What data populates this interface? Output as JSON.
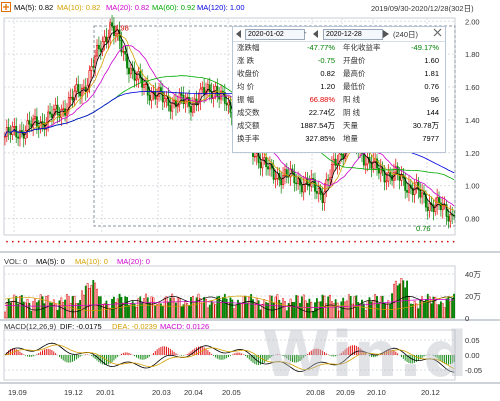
{
  "header": {
    "ma5": "MA(5): 0.82",
    "ma10": "MA(10): 0.82",
    "ma20": "MA(20): 0.82",
    "ma60": "MA(60): 0.92",
    "ma120": "MA(120): 1.00",
    "date_range": "2019/09/30-2020/12/28(302日)"
  },
  "info_panel": {
    "start_date": "2020-01-02",
    "end_date": "2020-12-28",
    "days": "(240日)",
    "rows": [
      {
        "l1": "涨跌幅",
        "v1": "-47.77%",
        "l2": "年化收益率",
        "v2": "-49.17%",
        "c1": "#008000",
        "c2": "#008000"
      },
      {
        "l1": "涨 跌",
        "v1": "-0.75",
        "l2": "开盘价",
        "v2": "1.60",
        "c1": "#008000",
        "c2": "#000000"
      },
      {
        "l1": "收盘价",
        "v1": "0.82",
        "l2": "最高价",
        "v2": "1.81",
        "c1": "#000000",
        "c2": "#000000"
      },
      {
        "l1": "均 价",
        "v1": "1.20",
        "l2": "最低价",
        "v2": "0.76",
        "c1": "#000000",
        "c2": "#000000"
      },
      {
        "l1": "振 幅",
        "v1": "66.88%",
        "l2": "阳 线",
        "v2": "96",
        "c1": "#e00000",
        "c2": "#000000"
      },
      {
        "l1": "成交数",
        "v1": "22.74亿",
        "l2": "阴 线",
        "v2": "144",
        "c1": "#000000",
        "c2": "#000000"
      },
      {
        "l1": "成交额",
        "v1": "1887.54万",
        "l2": "天量",
        "v2": "30.78万",
        "c1": "#000000",
        "c2": "#000000"
      },
      {
        "l1": "换手率",
        "v1": "327.85%",
        "l2": "地量",
        "v2": "7977",
        "c1": "#000000",
        "c2": "#000000"
      }
    ]
  },
  "volume_header": {
    "label": "VOL: 0",
    "ma5": "MA(5): 0",
    "ma10": "MA(10): 0",
    "ma20": "MA(20): 0"
  },
  "macd_header": {
    "label": "MACD(12,26,9)",
    "dif": "DIF: -0.0175",
    "dea": "DEA: -0.0239",
    "macd": "MACD: 0.0126"
  },
  "colors": {
    "up": "#e00000",
    "down": "#008000",
    "ma5": "#000000",
    "ma10": "#d4a000",
    "ma20": "#cc00cc",
    "ma60": "#00aa00",
    "ma120": "#0000dd",
    "grid": "#d9dde2"
  },
  "watermark": "Win.d",
  "chart_data": [
    {
      "type": "candlestick",
      "title": "",
      "y_tick_labels": [
        "2.00",
        "1.80",
        "1.60",
        "1.40",
        "1.20",
        "1.00",
        "0.80"
      ],
      "ylim": [
        0.7,
        2.02
      ],
      "x_tick_labels": [
        "19.09",
        "19.12",
        "20.01",
        "20.03",
        "20.04",
        "20.05",
        "20.08",
        "20.09",
        "20.10",
        "20.12"
      ],
      "high_label": "1.98",
      "low_label": "0.76",
      "close_points": [
        {
          "x": "19.09",
          "y": 1.3
        },
        {
          "x": "19.10",
          "y": 1.36
        },
        {
          "x": "19.11",
          "y": 1.44
        },
        {
          "x": "19.12",
          "y": 1.6
        },
        {
          "x": "19.12b",
          "y": 1.98
        },
        {
          "x": "20.01",
          "y": 1.64
        },
        {
          "x": "20.02",
          "y": 1.52
        },
        {
          "x": "20.03",
          "y": 1.5
        },
        {
          "x": "20.04",
          "y": 1.6
        },
        {
          "x": "20.04b",
          "y": 1.3
        },
        {
          "x": "20.05",
          "y": 1.08
        },
        {
          "x": "20.06",
          "y": 1.04
        },
        {
          "x": "20.07",
          "y": 0.96
        },
        {
          "x": "20.08",
          "y": 1.3
        },
        {
          "x": "20.09",
          "y": 1.1
        },
        {
          "x": "20.10",
          "y": 1.04
        },
        {
          "x": "20.11",
          "y": 0.9
        },
        {
          "x": "20.12",
          "y": 0.82
        }
      ]
    },
    {
      "type": "bar",
      "title": "",
      "y_tick_labels": [
        "40万",
        "20万",
        "0"
      ],
      "ylim": [
        0,
        40
      ]
    },
    {
      "type": "bar",
      "title": "",
      "y_tick_labels": [
        "0.05",
        "0.00",
        "-0.05"
      ],
      "ylim": [
        -0.08,
        0.08
      ]
    }
  ]
}
